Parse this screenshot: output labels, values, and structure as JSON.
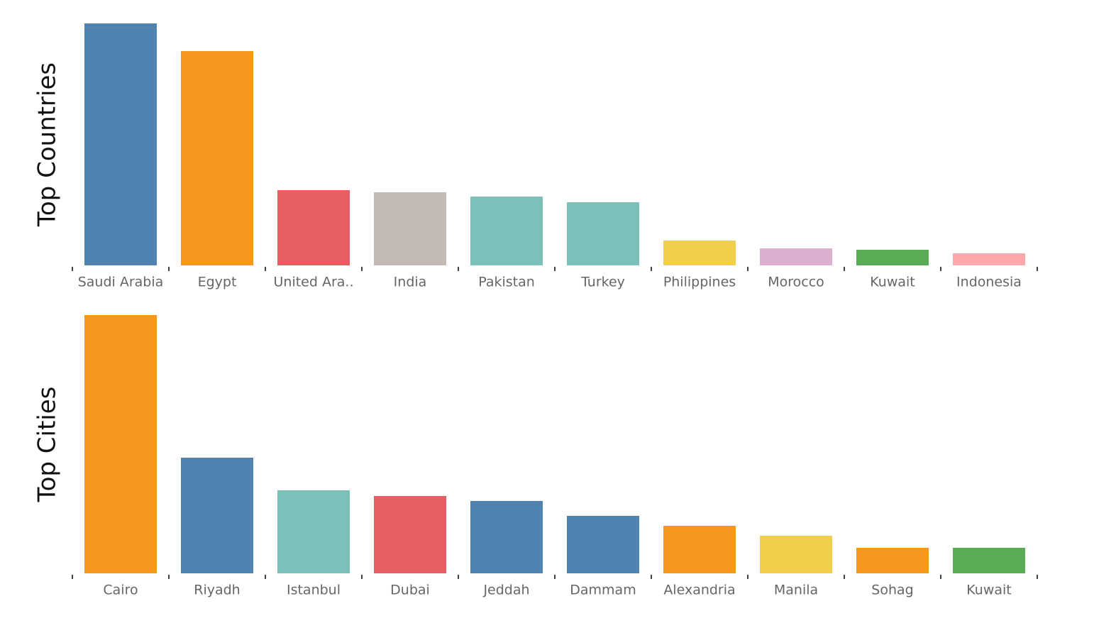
{
  "chart_data": [
    {
      "type": "bar",
      "ylabel": "Top Countries",
      "categories": [
        "Saudi Arabia",
        "Egypt",
        "United Ara..",
        "India",
        "Pakistan",
        "Turkey",
        "Philippines",
        "Morocco",
        "Kuwait",
        "Indonesia"
      ],
      "values": [
        341,
        302,
        106,
        103,
        97,
        89,
        35,
        24,
        22,
        17
      ],
      "colors": [
        "#5083b0",
        "#f89720",
        "#e85d62",
        "#c3b9b5",
        "#7cc0b9",
        "#7cc0b9",
        "#f2cf4a",
        "#ddafce",
        "#5aab55",
        "#fda8ad"
      ],
      "ylim": [
        0,
        341
      ]
    },
    {
      "type": "bar",
      "ylabel": "Top Cities",
      "categories": [
        "Cairo",
        "Riyadh",
        "Istanbul",
        "Dubai",
        "Jeddah",
        "Dammam",
        "Alexandria",
        "Manila",
        "Sohag",
        "Kuwait"
      ],
      "values": [
        364,
        163,
        117,
        109,
        102,
        81,
        67,
        53,
        36,
        36
      ],
      "colors": [
        "#f89720",
        "#5083b0",
        "#7cc0b9",
        "#e85d62",
        "#5083b0",
        "#5083b0",
        "#f89720",
        "#f2cf4a",
        "#f89720",
        "#5aab55"
      ],
      "ylim": [
        0,
        364
      ]
    }
  ]
}
